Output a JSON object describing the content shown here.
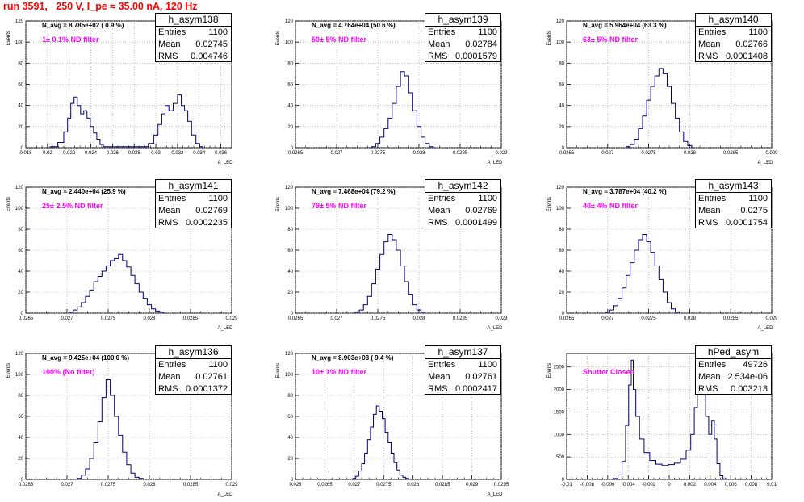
{
  "page_title": "run 3591,   250 V, I_pe ≈ 35.00 nA, 120 Hz",
  "ylabel": "Events",
  "xlabel": "A_LED",
  "colors": {
    "title": "#ff0000",
    "histogram": "#000080",
    "filter_label": "#ff00ff"
  },
  "chart_data": [
    {
      "type": "histogram",
      "name": "h_asym138",
      "n_avg": "N_avg = 8.785e+02 ( 0.9 %)",
      "filter": "1± 0.1% ND filter",
      "stats": {
        "entries": "1100",
        "mean": "0.02745",
        "rms": "0.004746"
      },
      "xlim": [
        0.018,
        0.037
      ],
      "ylim": [
        0,
        120
      ],
      "xticks": [
        0.018,
        0.02,
        0.022,
        0.024,
        0.026,
        0.028,
        0.03,
        0.032,
        0.034,
        0.036
      ],
      "xtick_labels": [
        "0.018",
        "0.02",
        "0.022",
        "0.024",
        "0.026",
        "0.028",
        "0.03",
        "0.032",
        "0.034",
        "0.036"
      ],
      "yticks": [
        0,
        20,
        40,
        60,
        80,
        100,
        120
      ],
      "ytick_labels": [
        "0",
        "20",
        "40",
        "60",
        "80",
        "100",
        "120"
      ],
      "xlabel": "A_LED",
      "points": [
        [
          0.0206,
          1
        ],
        [
          0.0213,
          5
        ],
        [
          0.0217,
          15
        ],
        [
          0.022,
          28
        ],
        [
          0.0223,
          42
        ],
        [
          0.0226,
          48
        ],
        [
          0.0229,
          40
        ],
        [
          0.0232,
          32
        ],
        [
          0.0235,
          35
        ],
        [
          0.0238,
          28
        ],
        [
          0.0241,
          20
        ],
        [
          0.0244,
          14
        ],
        [
          0.0247,
          8
        ],
        [
          0.025,
          3
        ],
        [
          0.0253,
          1
        ],
        [
          0.029,
          1
        ],
        [
          0.0296,
          4
        ],
        [
          0.03,
          12
        ],
        [
          0.0304,
          22
        ],
        [
          0.0307,
          32
        ],
        [
          0.031,
          40
        ],
        [
          0.0314,
          35
        ],
        [
          0.0318,
          42
        ],
        [
          0.0322,
          50
        ],
        [
          0.0325,
          40
        ],
        [
          0.0328,
          35
        ],
        [
          0.0331,
          25
        ],
        [
          0.0335,
          12
        ],
        [
          0.0339,
          4
        ],
        [
          0.0342,
          1
        ]
      ]
    },
    {
      "type": "histogram",
      "name": "h_asym139",
      "n_avg": "N_avg = 4.764e+04 (50.6 %)",
      "filter": "50± 5% ND filter",
      "stats": {
        "entries": "1100",
        "mean": "0.02784",
        "rms": "0.0001579"
      },
      "xlim": [
        0.0265,
        0.029
      ],
      "ylim": [
        0,
        120
      ],
      "xticks": [
        0.0265,
        0.027,
        0.0275,
        0.028,
        0.0285,
        0.029
      ],
      "xtick_labels": [
        "0.0265",
        "0.027",
        "0.0275",
        "0.028",
        "0.0285",
        "0.029"
      ],
      "yticks": [
        0,
        20,
        40,
        60,
        80,
        100,
        120
      ],
      "ytick_labels": [
        "0",
        "20",
        "40",
        "60",
        "80",
        "100",
        "120"
      ],
      "xlabel": "A_LED",
      "points": [
        [
          0.02745,
          1
        ],
        [
          0.0275,
          4
        ],
        [
          0.02755,
          10
        ],
        [
          0.0276,
          18
        ],
        [
          0.02765,
          28
        ],
        [
          0.0277,
          42
        ],
        [
          0.02775,
          58
        ],
        [
          0.0278,
          72
        ],
        [
          0.02785,
          68
        ],
        [
          0.0279,
          52
        ],
        [
          0.02795,
          35
        ],
        [
          0.028,
          20
        ],
        [
          0.02805,
          10
        ],
        [
          0.0281,
          4
        ],
        [
          0.02815,
          1
        ]
      ]
    },
    {
      "type": "histogram",
      "name": "h_asym140",
      "n_avg": "N_avg = 5.964e+04 (63.3 %)",
      "filter": "63± 5% ND filter",
      "stats": {
        "entries": "1100",
        "mean": "0.02766",
        "rms": "0.0001408"
      },
      "xlim": [
        0.0265,
        0.029
      ],
      "ylim": [
        0,
        120
      ],
      "xticks": [
        0.0265,
        0.027,
        0.0275,
        0.028,
        0.0285,
        0.029
      ],
      "xtick_labels": [
        "0.0265",
        "0.027",
        "0.0275",
        "0.028",
        "0.0285",
        "0.029"
      ],
      "yticks": [
        0,
        20,
        40,
        60,
        80,
        100,
        120
      ],
      "ytick_labels": [
        "0",
        "20",
        "40",
        "60",
        "80",
        "100",
        "120"
      ],
      "xlabel": "A_LED",
      "points": [
        [
          0.02725,
          1
        ],
        [
          0.0273,
          3
        ],
        [
          0.02735,
          8
        ],
        [
          0.0274,
          18
        ],
        [
          0.02745,
          30
        ],
        [
          0.0275,
          45
        ],
        [
          0.02755,
          58
        ],
        [
          0.0276,
          68
        ],
        [
          0.02765,
          75
        ],
        [
          0.0277,
          70
        ],
        [
          0.02775,
          58
        ],
        [
          0.0278,
          42
        ],
        [
          0.02785,
          28
        ],
        [
          0.0279,
          15
        ],
        [
          0.02795,
          6
        ],
        [
          0.028,
          2
        ]
      ]
    },
    {
      "type": "histogram",
      "name": "h_asym141",
      "n_avg": "N_avg = 2.440e+04 (25.9 %)",
      "filter": "25± 2.5% ND filter",
      "stats": {
        "entries": "1100",
        "mean": "0.02769",
        "rms": "0.0002235"
      },
      "xlim": [
        0.0265,
        0.029
      ],
      "ylim": [
        0,
        120
      ],
      "xticks": [
        0.0265,
        0.027,
        0.0275,
        0.028,
        0.0285,
        0.029
      ],
      "xtick_labels": [
        "0.0265",
        "0.027",
        "0.0275",
        "0.028",
        "0.0285",
        "0.029"
      ],
      "yticks": [
        0,
        20,
        40,
        60,
        80,
        100,
        120
      ],
      "ytick_labels": [
        "0",
        "20",
        "40",
        "60",
        "80",
        "100",
        "120"
      ],
      "xlabel": "A_LED",
      "points": [
        [
          0.02705,
          1
        ],
        [
          0.0271,
          3
        ],
        [
          0.02715,
          6
        ],
        [
          0.0272,
          10
        ],
        [
          0.02725,
          16
        ],
        [
          0.0273,
          22
        ],
        [
          0.02735,
          30
        ],
        [
          0.0274,
          35
        ],
        [
          0.02745,
          40
        ],
        [
          0.0275,
          45
        ],
        [
          0.02755,
          50
        ],
        [
          0.0276,
          52
        ],
        [
          0.02765,
          56
        ],
        [
          0.0277,
          50
        ],
        [
          0.02775,
          44
        ],
        [
          0.0278,
          36
        ],
        [
          0.02785,
          28
        ],
        [
          0.0279,
          20
        ],
        [
          0.02795,
          14
        ],
        [
          0.028,
          8
        ],
        [
          0.02805,
          4
        ],
        [
          0.0281,
          2
        ],
        [
          0.02815,
          1
        ]
      ]
    },
    {
      "type": "histogram",
      "name": "h_asym142",
      "n_avg": "N_avg = 7.468e+04 (79.2 %)",
      "filter": "79± 5% ND filter",
      "stats": {
        "entries": "1100",
        "mean": "0.02769",
        "rms": "0.0001499"
      },
      "xlim": [
        0.0265,
        0.029
      ],
      "ylim": [
        0,
        120
      ],
      "xticks": [
        0.0265,
        0.027,
        0.0275,
        0.028,
        0.0285,
        0.029
      ],
      "xtick_labels": [
        "0.0265",
        "0.027",
        "0.0275",
        "0.028",
        "0.0285",
        "0.029"
      ],
      "yticks": [
        0,
        20,
        40,
        60,
        80,
        100,
        120
      ],
      "ytick_labels": [
        "0",
        "20",
        "40",
        "60",
        "80",
        "100",
        "120"
      ],
      "xlabel": "A_LED",
      "points": [
        [
          0.02725,
          1
        ],
        [
          0.0273,
          3
        ],
        [
          0.02735,
          8
        ],
        [
          0.0274,
          16
        ],
        [
          0.02745,
          28
        ],
        [
          0.0275,
          42
        ],
        [
          0.02755,
          56
        ],
        [
          0.0276,
          68
        ],
        [
          0.02765,
          75
        ],
        [
          0.0277,
          70
        ],
        [
          0.02775,
          60
        ],
        [
          0.0278,
          45
        ],
        [
          0.02785,
          30
        ],
        [
          0.0279,
          18
        ],
        [
          0.02795,
          8
        ],
        [
          0.028,
          3
        ],
        [
          0.02805,
          1
        ]
      ]
    },
    {
      "type": "histogram",
      "name": "h_asym143",
      "n_avg": "N_avg = 3.787e+04 (40.2 %)",
      "filter": "40± 4% ND filter",
      "stats": {
        "entries": "1100",
        "mean": "0.0275",
        "rms": "0.0001754"
      },
      "xlim": [
        0.0265,
        0.029
      ],
      "ylim": [
        0,
        120
      ],
      "xticks": [
        0.0265,
        0.027,
        0.0275,
        0.028,
        0.0285,
        0.029
      ],
      "xtick_labels": [
        "0.0265",
        "0.027",
        "0.0275",
        "0.028",
        "0.0285",
        "0.029"
      ],
      "yticks": [
        0,
        20,
        40,
        60,
        80,
        100,
        120
      ],
      "ytick_labels": [
        "0",
        "20",
        "40",
        "60",
        "80",
        "100",
        "120"
      ],
      "xlabel": "A_LED",
      "points": [
        [
          0.027,
          1
        ],
        [
          0.02705,
          3
        ],
        [
          0.0271,
          7
        ],
        [
          0.02715,
          14
        ],
        [
          0.0272,
          24
        ],
        [
          0.02725,
          36
        ],
        [
          0.0273,
          48
        ],
        [
          0.02735,
          60
        ],
        [
          0.0274,
          70
        ],
        [
          0.02745,
          75
        ],
        [
          0.0275,
          68
        ],
        [
          0.02755,
          58
        ],
        [
          0.0276,
          45
        ],
        [
          0.02765,
          32
        ],
        [
          0.0277,
          20
        ],
        [
          0.02775,
          10
        ],
        [
          0.0278,
          4
        ],
        [
          0.02785,
          1
        ]
      ]
    },
    {
      "type": "histogram",
      "name": "h_asym136",
      "n_avg": "N_avg = 9.425e+04 (100.0 %)",
      "filter": "100% (No filter)",
      "stats": {
        "entries": "1100",
        "mean": "0.02761",
        "rms": "0.0001372"
      },
      "xlim": [
        0.0265,
        0.029
      ],
      "ylim": [
        0,
        120
      ],
      "xticks": [
        0.0265,
        0.027,
        0.0275,
        0.028,
        0.0285,
        0.029
      ],
      "xtick_labels": [
        "0.0265",
        "0.027",
        "0.0275",
        "0.028",
        "0.0285",
        "0.029"
      ],
      "yticks": [
        0,
        20,
        40,
        60,
        80,
        100,
        120
      ],
      "ytick_labels": [
        "0",
        "20",
        "40",
        "60",
        "80",
        "100",
        "120"
      ],
      "xlabel": "A_LED",
      "points": [
        [
          0.02715,
          1
        ],
        [
          0.0272,
          4
        ],
        [
          0.02725,
          10
        ],
        [
          0.0273,
          20
        ],
        [
          0.02735,
          35
        ],
        [
          0.0274,
          55
        ],
        [
          0.02745,
          78
        ],
        [
          0.0275,
          95
        ],
        [
          0.02755,
          80
        ],
        [
          0.0276,
          60
        ],
        [
          0.02765,
          42
        ],
        [
          0.0277,
          26
        ],
        [
          0.02775,
          14
        ],
        [
          0.0278,
          6
        ],
        [
          0.02785,
          2
        ],
        [
          0.0279,
          1
        ]
      ]
    },
    {
      "type": "histogram",
      "name": "h_asym137",
      "n_avg": "N_avg = 8.903e+03 ( 9.4 %)",
      "filter": "10± 1% ND filter",
      "stats": {
        "entries": "1100",
        "mean": "0.02761",
        "rms": "0.0002417"
      },
      "xlim": [
        0.026,
        0.0295
      ],
      "ylim": [
        0,
        120
      ],
      "xticks": [
        0.026,
        0.0265,
        0.027,
        0.0275,
        0.028,
        0.0285,
        0.029,
        0.0295
      ],
      "xtick_labels": [
        "0.026",
        "0.0265",
        "0.027",
        "0.0275",
        "0.028",
        "0.0285",
        "0.029",
        "0.0295"
      ],
      "yticks": [
        0,
        20,
        40,
        60,
        80,
        100,
        120
      ],
      "ytick_labels": [
        "0",
        "20",
        "40",
        "60",
        "80",
        "100",
        "120"
      ],
      "xlabel": "A_LED",
      "points": [
        [
          0.027,
          1
        ],
        [
          0.02705,
          3
        ],
        [
          0.0271,
          8
        ],
        [
          0.02715,
          15
        ],
        [
          0.0272,
          25
        ],
        [
          0.02725,
          38
        ],
        [
          0.0273,
          50
        ],
        [
          0.02735,
          62
        ],
        [
          0.0274,
          70
        ],
        [
          0.02745,
          65
        ],
        [
          0.0275,
          58
        ],
        [
          0.02755,
          45
        ],
        [
          0.0276,
          35
        ],
        [
          0.02765,
          25
        ],
        [
          0.0277,
          16
        ],
        [
          0.02775,
          9
        ],
        [
          0.0278,
          4
        ],
        [
          0.02785,
          2
        ],
        [
          0.0279,
          1
        ]
      ]
    },
    {
      "type": "histogram",
      "name": "hPed_asym",
      "n_avg": "",
      "filter": "Shutter Closed",
      "stats": {
        "entries": "49726",
        "mean": "2.534e-06",
        "rms": "0.003213"
      },
      "xlim": [
        -0.01,
        0.01
      ],
      "ylim": [
        0,
        2800
      ],
      "xticks": [
        -0.01,
        -0.008,
        -0.006,
        -0.004,
        -0.002,
        0,
        0.002,
        0.004,
        0.006,
        0.008,
        0.01
      ],
      "xtick_labels": [
        "-0.01",
        "-0.008",
        "-0.006",
        "-0.004",
        "-0.002",
        "0",
        "0.002",
        "0.004",
        "0.006",
        "0.008",
        "0.01"
      ],
      "yticks": [
        0,
        500,
        1000,
        1500,
        2000,
        2500
      ],
      "ytick_labels": [
        "0",
        "500",
        "1000",
        "1500",
        "2000",
        "2500"
      ],
      "xlabel": "",
      "points": [
        [
          -0.0052,
          20
        ],
        [
          -0.0048,
          100
        ],
        [
          -0.0044,
          400
        ],
        [
          -0.0041,
          1200
        ],
        [
          -0.0038,
          2100
        ],
        [
          -0.0036,
          2650
        ],
        [
          -0.0034,
          2000
        ],
        [
          -0.0031,
          1400
        ],
        [
          -0.0027,
          900
        ],
        [
          -0.0022,
          600
        ],
        [
          -0.0016,
          420
        ],
        [
          -0.001,
          340
        ],
        [
          -0.0004,
          310
        ],
        [
          0.0002,
          330
        ],
        [
          0.0008,
          360
        ],
        [
          0.0014,
          450
        ],
        [
          0.0019,
          650
        ],
        [
          0.0023,
          1000
        ],
        [
          0.0026,
          1600
        ],
        [
          0.0029,
          2300
        ],
        [
          0.0031,
          2450
        ],
        [
          0.0034,
          1900
        ],
        [
          0.0037,
          1400
        ],
        [
          0.004,
          1000
        ],
        [
          0.0043,
          1300
        ],
        [
          0.0045,
          900
        ],
        [
          0.0048,
          350
        ],
        [
          0.0051,
          80
        ],
        [
          0.0054,
          15
        ]
      ]
    }
  ]
}
